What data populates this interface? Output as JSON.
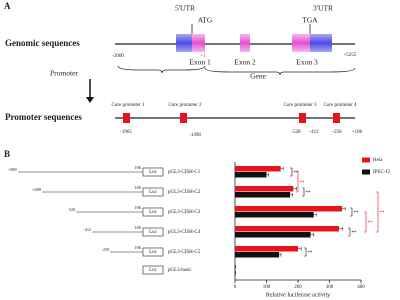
{
  "panel_a": {
    "label": "A",
    "genomic": {
      "title": "Genomic sequences",
      "utr5": "5'UTR",
      "atg": "ATG",
      "tga": "TGA",
      "utr3": "3'UTR",
      "start": "-2000",
      "end": "+5255",
      "tss": "+1",
      "exons": [
        "Exon 1",
        "Exon 2",
        "Exon 3"
      ],
      "promoter": "Promoter",
      "gene": "Gene"
    },
    "promoter": {
      "title": "Promoter sequences",
      "cores": [
        "Core promoter 1",
        "Core promoter 2",
        "Core promoter 3",
        "Core promoter 4"
      ],
      "positions": [
        "-1965",
        "-1498",
        "-528",
        "-412",
        "-258",
        "+106"
      ]
    }
  },
  "chart_data": {
    "type": "bar",
    "panel_label": "B",
    "categories": [
      "pGL3-CISH-C1",
      "pGL3-CISH-C2",
      "pGL3-CISH-C3",
      "pGL3-CISH-C4",
      "pGL3-CISH-C5",
      "pGL3-basic"
    ],
    "constructs": [
      {
        "start": "-1965",
        "end": "106",
        "reporter": "Luc"
      },
      {
        "start": "-1498",
        "end": "106",
        "reporter": "Luc"
      },
      {
        "start": "-528",
        "end": "106",
        "reporter": "Luc"
      },
      {
        "start": "-412",
        "end": "106",
        "reporter": "Luc"
      },
      {
        "start": "-258",
        "end": "106",
        "reporter": "Luc"
      },
      {
        "reporter": "Luc"
      }
    ],
    "series": [
      {
        "name": "Hela",
        "color": "#e8141b",
        "values": [
          145,
          185,
          340,
          330,
          200,
          0
        ],
        "errors": [
          8,
          10,
          10,
          12,
          10,
          2
        ]
      },
      {
        "name": "IPEC-J2",
        "color": "#111111",
        "values": [
          100,
          175,
          250,
          240,
          140,
          0
        ],
        "errors": [
          6,
          8,
          8,
          10,
          6,
          2
        ]
      }
    ],
    "x_label": "Relative luciferase activity",
    "xlim": [
      0,
      400
    ],
    "xticks": [
      0,
      100,
      200,
      300,
      400
    ],
    "legend": "top-right",
    "significance": [
      {
        "label": "**",
        "color": "#111111"
      },
      {
        "label": "**",
        "color": "#111111"
      },
      {
        "label": "**",
        "color": "#111111"
      },
      {
        "label": "**",
        "color": "#111111"
      },
      {
        "label": "**",
        "color": "#111111"
      },
      {
        "label": "**",
        "color": "#e8141b"
      },
      {
        "label": "**",
        "color": "#e8141b"
      },
      {
        "label": "**",
        "color": "#e8141b"
      }
    ]
  }
}
